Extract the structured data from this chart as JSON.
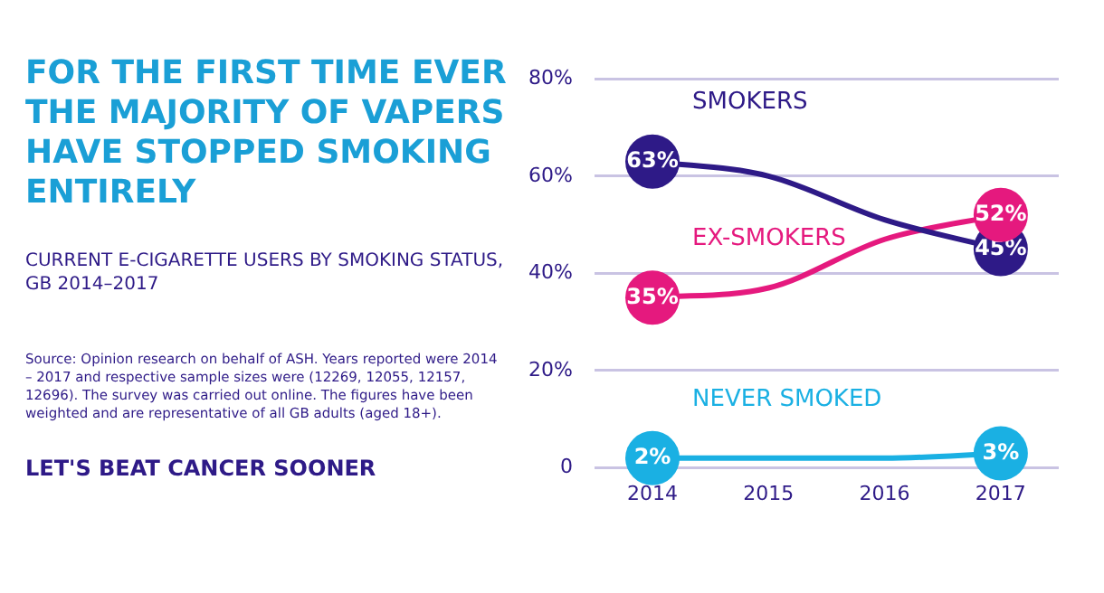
{
  "chart_data": {
    "type": "line",
    "title": "FOR THE FIRST TIME EVER THE MAJORITY OF VAPERS HAVE STOPPED SMOKING ENTIRELY",
    "subtitle": "CURRENT E-CIGARETTE USERS BY SMOKING STATUS, GB 2014–2017",
    "categories": [
      "2014",
      "2015",
      "2016",
      "2017"
    ],
    "series": [
      {
        "name": "SMOKERS",
        "color": "#2e1a87",
        "values": [
          63,
          60,
          51,
          45
        ],
        "value_labels": [
          "63%",
          null,
          null,
          "45%"
        ]
      },
      {
        "name": "EX-SMOKERS",
        "color": "#e5197e",
        "values": [
          35,
          37,
          47,
          52
        ],
        "value_labels": [
          "35%",
          null,
          null,
          "52%"
        ]
      },
      {
        "name": "NEVER SMOKED",
        "color": "#1ab0e3",
        "values": [
          2,
          2,
          2,
          3
        ],
        "value_labels": [
          "2%",
          null,
          null,
          "3%"
        ]
      }
    ],
    "ylim": [
      0,
      80
    ],
    "yticks": [
      0,
      {
        "value": 20,
        "label": "20%"
      },
      {
        "value": 40,
        "label": "40%"
      },
      {
        "value": 60,
        "label": "60%"
      },
      {
        "value": 80,
        "label": "80%"
      }
    ],
    "grid": "y",
    "legend": false,
    "line_style": "solid",
    "annotations": [
      "Source: Opinion research on behalf of ASH. Years reported were 2014 – 2017 and respective sample sizes were (12269, 12055, 12157, 12696). The survey was carried out online. The figures have been weighted and are representative of all GB adults (aged 18+).",
      "LET'S BEAT CANCER SOONER"
    ]
  }
}
